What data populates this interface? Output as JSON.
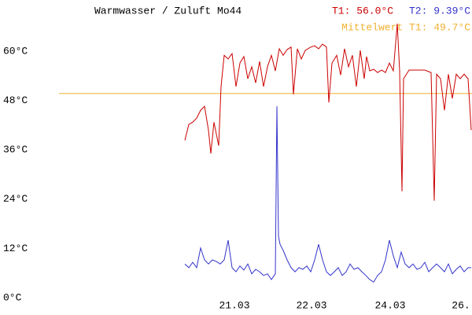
{
  "chart_data": {
    "type": "line",
    "title": "Warmwasser / Zuluft Mo44",
    "xlim": [
      0,
      525
    ],
    "xticks": [
      {
        "value": 223,
        "label": "21.03"
      },
      {
        "value": 321,
        "label": "22.03"
      },
      {
        "value": 421,
        "label": "24.03"
      },
      {
        "value": 511,
        "label": "26."
      }
    ],
    "ylim": [
      0,
      72
    ],
    "yticks": [
      {
        "value": 0,
        "label": "0°C"
      },
      {
        "value": 12,
        "label": "12°C"
      },
      {
        "value": 24,
        "label": "24°C"
      },
      {
        "value": 36,
        "label": "36°C"
      },
      {
        "value": 48,
        "label": "48°C"
      },
      {
        "value": 60,
        "label": "60°C"
      }
    ],
    "grid": false,
    "reference_line": {
      "name": "Mittelwert T1: 49.7°C",
      "value": 49.7,
      "color": "#f0b030"
    },
    "series": [
      {
        "name": "T1: 56.0°C",
        "color": "#cc0000",
        "x": [
          160,
          165,
          170,
          175,
          180,
          185,
          190,
          193,
          197,
          203,
          206,
          210,
          215,
          220,
          225,
          230,
          235,
          240,
          245,
          250,
          255,
          260,
          265,
          270,
          275,
          280,
          285,
          290,
          295,
          298,
          303,
          308,
          313,
          320,
          325,
          330,
          335,
          340,
          343,
          347,
          353,
          358,
          363,
          368,
          373,
          378,
          383,
          388,
          391,
          395,
          400,
          405,
          410,
          415,
          420,
          425,
          430,
          433,
          436,
          438,
          445,
          455,
          465,
          473,
          477,
          480,
          485,
          490,
          495,
          500,
          505,
          510,
          515,
          520,
          524
        ],
        "values": [
          38.3,
          42.2,
          42.7,
          43.7,
          45.6,
          46.6,
          40.8,
          35.1,
          42.7,
          37.0,
          51.4,
          59.0,
          58.1,
          59.4,
          51.4,
          57.1,
          58.7,
          53.3,
          56.2,
          52.3,
          57.5,
          51.4,
          56.2,
          59.0,
          55.2,
          60.6,
          59.0,
          60.4,
          61.0,
          49.5,
          60.6,
          58.1,
          60.2,
          61.0,
          61.3,
          60.6,
          61.7,
          61.0,
          47.5,
          57.1,
          59.0,
          54.2,
          60.6,
          56.2,
          59.0,
          51.4,
          60.2,
          53.3,
          58.7,
          55.2,
          55.6,
          54.8,
          55.4,
          54.8,
          57.1,
          55.2,
          66.7,
          55.2,
          25.9,
          53.3,
          55.4,
          55.4,
          55.4,
          54.8,
          23.6,
          54.4,
          53.3,
          45.6,
          54.4,
          48.5,
          54.4,
          53.3,
          54.4,
          53.3,
          40.8
        ]
      },
      {
        "name": "T2: 9.39°C",
        "color": "#3333cc",
        "x": [
          160,
          165,
          170,
          175,
          180,
          185,
          190,
          195,
          200,
          205,
          210,
          215,
          220,
          225,
          230,
          235,
          240,
          245,
          250,
          255,
          260,
          265,
          270,
          275,
          277,
          279,
          281,
          285,
          290,
          295,
          300,
          305,
          310,
          315,
          320,
          325,
          330,
          335,
          340,
          345,
          350,
          355,
          360,
          365,
          370,
          375,
          380,
          385,
          390,
          395,
          400,
          405,
          410,
          415,
          420,
          425,
          430,
          435,
          440,
          445,
          450,
          455,
          460,
          465,
          470,
          475,
          480,
          485,
          490,
          495,
          500,
          505,
          510,
          515,
          520,
          524
        ],
        "values": [
          8.2,
          7.3,
          8.6,
          7.3,
          12.1,
          9.2,
          8.2,
          9.2,
          8.8,
          8.2,
          9.2,
          14.0,
          7.3,
          6.3,
          7.7,
          6.7,
          8.2,
          5.8,
          6.9,
          6.3,
          5.4,
          5.8,
          4.4,
          5.8,
          46.6,
          15.0,
          13.0,
          11.5,
          9.2,
          7.3,
          6.3,
          7.3,
          6.9,
          7.7,
          6.3,
          9.2,
          13.0,
          9.2,
          6.3,
          5.4,
          6.3,
          7.3,
          5.4,
          6.3,
          8.2,
          6.9,
          7.3,
          6.3,
          5.4,
          4.4,
          3.8,
          5.4,
          6.3,
          9.2,
          14.0,
          10.2,
          7.3,
          11.1,
          8.2,
          7.3,
          8.2,
          6.9,
          7.3,
          8.6,
          6.3,
          7.3,
          8.2,
          7.3,
          6.3,
          8.2,
          5.8,
          6.9,
          7.7,
          6.3,
          7.3,
          7.3
        ]
      }
    ]
  }
}
